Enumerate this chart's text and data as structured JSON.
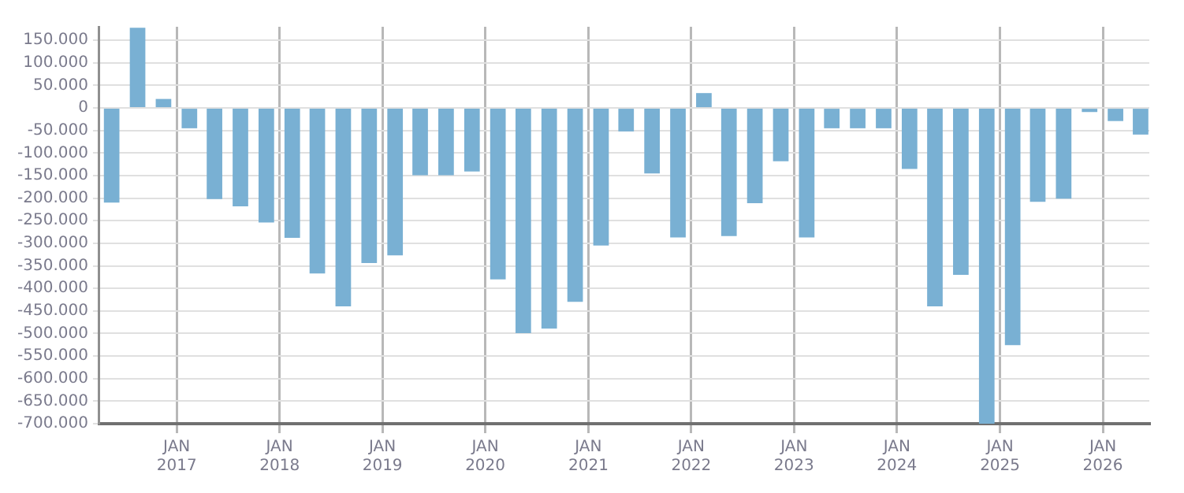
{
  "chart_data": {
    "type": "bar",
    "x": [
      "2016-05-15",
      "2016-08-15",
      "2016-11-15",
      "2017-02-15",
      "2017-05-15",
      "2017-08-15",
      "2017-11-15",
      "2018-02-15",
      "2018-05-15",
      "2018-08-15",
      "2018-11-15",
      "2019-02-15",
      "2019-05-15",
      "2019-08-15",
      "2019-11-15",
      "2020-02-15",
      "2020-05-15",
      "2020-08-15",
      "2020-11-15",
      "2021-02-15",
      "2021-05-15",
      "2021-08-15",
      "2021-11-15",
      "2022-02-15",
      "2022-05-15",
      "2022-08-15",
      "2022-11-15",
      "2023-02-15",
      "2023-05-15",
      "2023-08-15",
      "2023-11-15",
      "2024-02-15",
      "2024-05-15",
      "2024-08-15",
      "2024-11-15",
      "2025-02-15",
      "2025-05-15",
      "2025-08-15",
      "2025-11-15",
      "2026-02-15",
      "2026-05-15"
    ],
    "values": [
      -210000,
      178000,
      20000,
      -45000,
      -202000,
      -218000,
      -254000,
      -288000,
      -367000,
      -440000,
      -344000,
      -327000,
      -149000,
      -149000,
      -141000,
      -380000,
      -499000,
      -489000,
      -430000,
      -305000,
      -52000,
      -145000,
      -287000,
      33000,
      -284000,
      -211000,
      -118000,
      -287000,
      -45000,
      -45000,
      -45000,
      -135000,
      -440000,
      -370000,
      -700000,
      -526000,
      -208000,
      -201000,
      -9000,
      -29000,
      -59000
    ],
    "color": "#79b0d3",
    "xlim": [
      "2016-04-01",
      "2026-06-15"
    ],
    "xticks": [
      {
        "value": "2017-01-01",
        "label": "JAN 2017"
      },
      {
        "value": "2018-01-01",
        "label": "JAN 2018"
      },
      {
        "value": "2019-01-01",
        "label": "JAN 2019"
      },
      {
        "value": "2020-01-01",
        "label": "JAN 2020"
      },
      {
        "value": "2021-01-01",
        "label": "JAN 2021"
      },
      {
        "value": "2022-01-01",
        "label": "JAN 2022"
      },
      {
        "value": "2023-01-01",
        "label": "JAN 2023"
      },
      {
        "value": "2024-01-01",
        "label": "JAN 2024"
      },
      {
        "value": "2025-01-01",
        "label": "JAN 2025"
      },
      {
        "value": "2026-01-01",
        "label": "JAN 2026"
      }
    ],
    "ylim": [
      -700000,
      180000
    ],
    "yticks": [
      {
        "value": 150000,
        "label": "150.000"
      },
      {
        "value": 100000,
        "label": "100.000"
      },
      {
        "value": 50000,
        "label": "50.000"
      },
      0,
      {
        "value": -50000,
        "label": "-50.000"
      },
      {
        "value": -100000,
        "label": "-100.000"
      },
      {
        "value": -150000,
        "label": "-150.000"
      },
      {
        "value": -200000,
        "label": "-200.000"
      },
      {
        "value": -250000,
        "label": "-250.000"
      },
      {
        "value": -300000,
        "label": "-300.000"
      },
      {
        "value": -350000,
        "label": "-350.000"
      },
      {
        "value": -400000,
        "label": "-400.000"
      },
      {
        "value": -450000,
        "label": "-450.000"
      },
      {
        "value": -500000,
        "label": "-500.000"
      },
      {
        "value": -550000,
        "label": "-550.000"
      },
      {
        "value": -600000,
        "label": "-600.000"
      },
      {
        "value": -650000,
        "label": "-650.000"
      },
      {
        "value": -700000,
        "label": "-700.000"
      }
    ],
    "grid": true,
    "legend": false
  }
}
